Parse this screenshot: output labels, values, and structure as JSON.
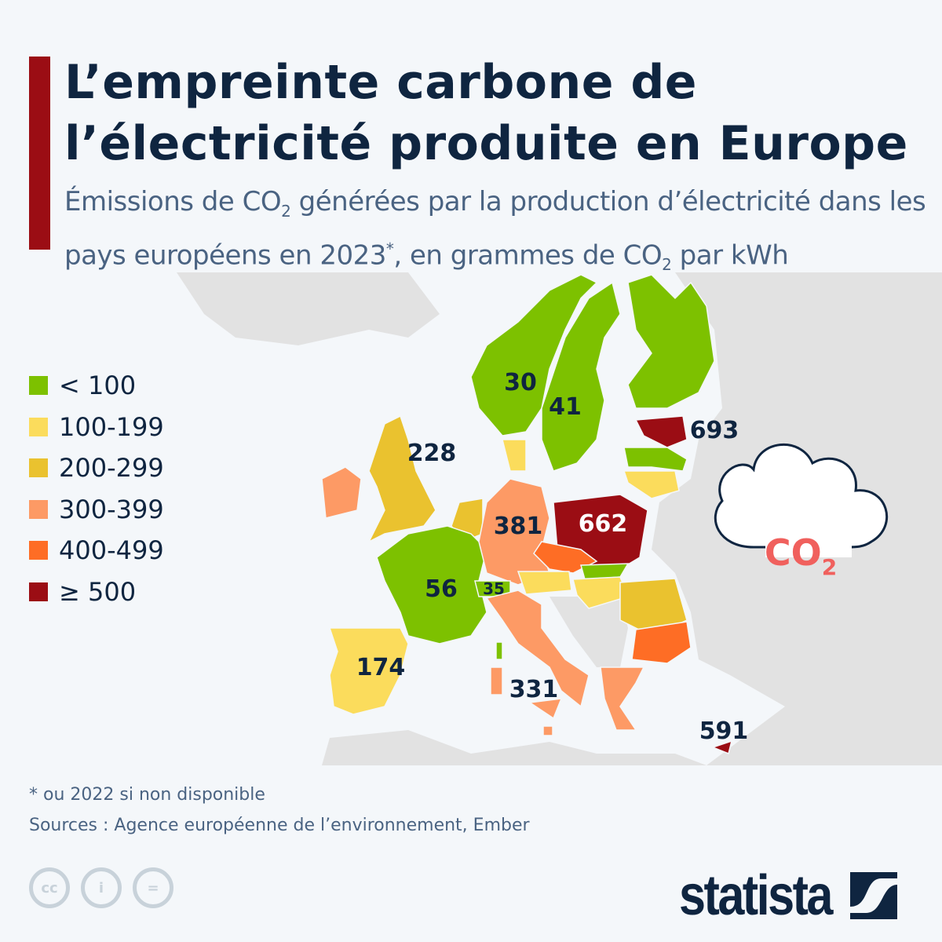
{
  "header": {
    "title_line1": "L’empreinte carbone de",
    "title_line2": "l’électricité produite en Europe",
    "subtitle_a": "Émissions de CO",
    "subtitle_sub": "2",
    "subtitle_b": " générées par la production d’électricité dans les pays européens en 2023",
    "subtitle_sup": "*",
    "subtitle_c": ", en grammes de CO",
    "subtitle_sub2": "2",
    "subtitle_d": " par kWh"
  },
  "legend": [
    {
      "label": "< 100",
      "color": "#7dc100"
    },
    {
      "label": "100-199",
      "color": "#fbdc5c"
    },
    {
      "label": "200-299",
      "color": "#eac22f"
    },
    {
      "label": "300-399",
      "color": "#fd9a65"
    },
    {
      "label": "400-499",
      "color": "#fe6d25"
    },
    {
      "label": "≥ 500",
      "color": "#9b0d14"
    }
  ],
  "map_labels": {
    "norway": "30",
    "sweden": "41",
    "estonia": "693",
    "uk": "228",
    "germany": "381",
    "poland": "662",
    "france": "56",
    "switzerland": "35",
    "spain": "174",
    "italy": "331",
    "cyprus": "591"
  },
  "cloud": {
    "text": "CO",
    "sub": "2",
    "color": "#f0605d",
    "icon": "cloud-icon"
  },
  "footer": {
    "note": "* ou 2022 si non disponible",
    "sources": "Sources : Agence européenne de l’environnement, Ember",
    "license_icons": [
      "cc-icon",
      "attribution-icon",
      "no-derivatives-icon"
    ],
    "logo": "statista"
  },
  "colors": {
    "land": "#e2e2e2",
    "title": "#0f2540",
    "accent_bar": "#9b0d14"
  }
}
